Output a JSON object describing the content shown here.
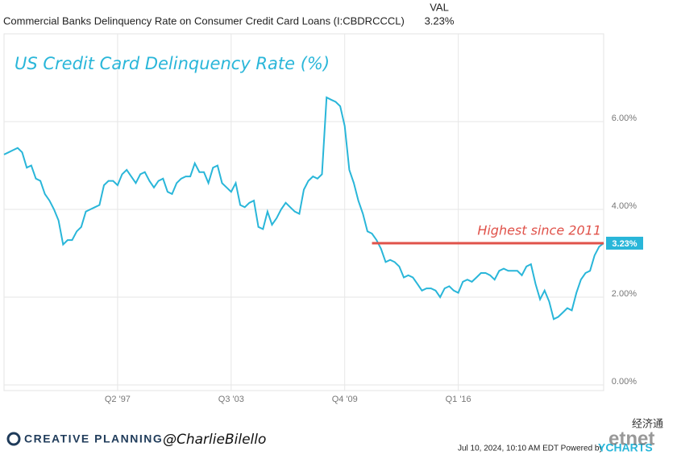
{
  "chart_data": {
    "type": "line",
    "header": {
      "series_name": "Commercial Banks Delinquency Rate on Consumer Credit Card Loans (I:CBDRCCCL)",
      "column": "VAL",
      "value": "3.23%"
    },
    "title": "US Credit Card Delinquency Rate (%)",
    "annotation": {
      "text": "Highest since 2011",
      "value": 3.23,
      "x_start": 2011.25,
      "color": "#e0524a"
    },
    "last_label": "3.23%",
    "x_start": 1991,
    "x_step": 0.25,
    "series": [
      {
        "name": "Commercial Banks Delinquency Rate on Consumer Credit Card Loans",
        "color": "#29b6d9",
        "values": [
          5.25,
          5.3,
          5.35,
          5.4,
          5.3,
          4.95,
          5.0,
          4.7,
          4.65,
          4.35,
          4.2,
          4.0,
          3.75,
          3.2,
          3.3,
          3.3,
          3.5,
          3.6,
          3.95,
          4.0,
          4.05,
          4.1,
          4.55,
          4.65,
          4.65,
          4.55,
          4.8,
          4.9,
          4.75,
          4.6,
          4.8,
          4.85,
          4.65,
          4.5,
          4.65,
          4.7,
          4.4,
          4.35,
          4.6,
          4.7,
          4.75,
          4.75,
          5.05,
          4.85,
          4.85,
          4.6,
          4.95,
          5.0,
          4.6,
          4.5,
          4.4,
          4.6,
          4.1,
          4.05,
          4.15,
          4.2,
          3.6,
          3.55,
          3.95,
          3.65,
          3.8,
          4.0,
          4.15,
          4.05,
          3.95,
          3.9,
          4.45,
          4.65,
          4.75,
          4.7,
          4.8,
          6.55,
          6.5,
          6.45,
          6.35,
          5.9,
          4.9,
          4.6,
          4.2,
          3.9,
          3.5,
          3.45,
          3.3,
          3.1,
          2.8,
          2.85,
          2.8,
          2.7,
          2.45,
          2.5,
          2.45,
          2.3,
          2.15,
          2.2,
          2.2,
          2.15,
          2.0,
          2.2,
          2.25,
          2.15,
          2.1,
          2.35,
          2.4,
          2.35,
          2.45,
          2.55,
          2.55,
          2.5,
          2.4,
          2.6,
          2.65,
          2.6,
          2.6,
          2.6,
          2.5,
          2.7,
          2.75,
          2.3,
          1.95,
          2.15,
          1.9,
          1.5,
          1.55,
          1.65,
          1.75,
          1.7,
          2.1,
          2.4,
          2.55,
          2.6,
          2.95,
          3.15,
          3.23
        ]
      }
    ],
    "xlim": [
      1991,
      2024
    ],
    "xticks": [
      {
        "value": 1997.25,
        "label": "Q2 '97"
      },
      {
        "value": 2003.5,
        "label": "Q3 '03"
      },
      {
        "value": 2009.75,
        "label": "Q4 '09"
      },
      {
        "value": 2016.0,
        "label": "Q1 '16"
      }
    ],
    "ylim": [
      0,
      8
    ],
    "yticks": [
      {
        "value": 0,
        "label": "0.00%"
      },
      {
        "value": 2,
        "label": "2.00%"
      },
      {
        "value": 4,
        "label": "4.00%"
      },
      {
        "value": 6,
        "label": "6.00%"
      }
    ],
    "grid": true,
    "footer": {
      "brand": "CREATIVE PLANNING",
      "handle": "@CharlieBilello",
      "timestamp": "Jul 10, 2024, 10:10 AM EDT Powered by",
      "ycharts": "YCHARTS",
      "etnet_cn": "经济通",
      "etnet": "etnet"
    }
  }
}
